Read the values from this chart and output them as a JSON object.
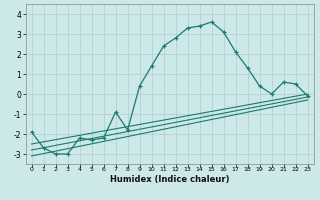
{
  "title": "",
  "xlabel": "Humidex (Indice chaleur)",
  "bg_color": "#cce8e8",
  "line_color": "#1a7a6e",
  "grid_color": "#b0cccc",
  "xlim": [
    -0.5,
    23.5
  ],
  "ylim": [
    -3.5,
    4.5
  ],
  "yticks": [
    -3,
    -2,
    -1,
    0,
    1,
    2,
    3,
    4
  ],
  "xticks": [
    0,
    1,
    2,
    3,
    4,
    5,
    6,
    7,
    8,
    9,
    10,
    11,
    12,
    13,
    14,
    15,
    16,
    17,
    18,
    19,
    20,
    21,
    22,
    23
  ],
  "series1_x": [
    0,
    1,
    2,
    3,
    4,
    5,
    6,
    7,
    8,
    9,
    10,
    11,
    12,
    13,
    14,
    15,
    16,
    17,
    18,
    19,
    20,
    21,
    22,
    23
  ],
  "series1_y": [
    -1.9,
    -2.7,
    -3.0,
    -3.0,
    -2.2,
    -2.3,
    -2.2,
    -0.9,
    -1.8,
    0.4,
    1.4,
    2.4,
    2.8,
    3.3,
    3.4,
    3.6,
    3.1,
    2.1,
    1.3,
    0.4,
    0.0,
    0.6,
    0.5,
    -0.1
  ],
  "series2_x": [
    0,
    23
  ],
  "series2_y": [
    -2.5,
    0.0
  ],
  "series3_x": [
    0,
    23
  ],
  "series3_y": [
    -2.8,
    -0.15
  ],
  "series4_x": [
    0,
    23
  ],
  "series4_y": [
    -3.1,
    -0.3
  ]
}
